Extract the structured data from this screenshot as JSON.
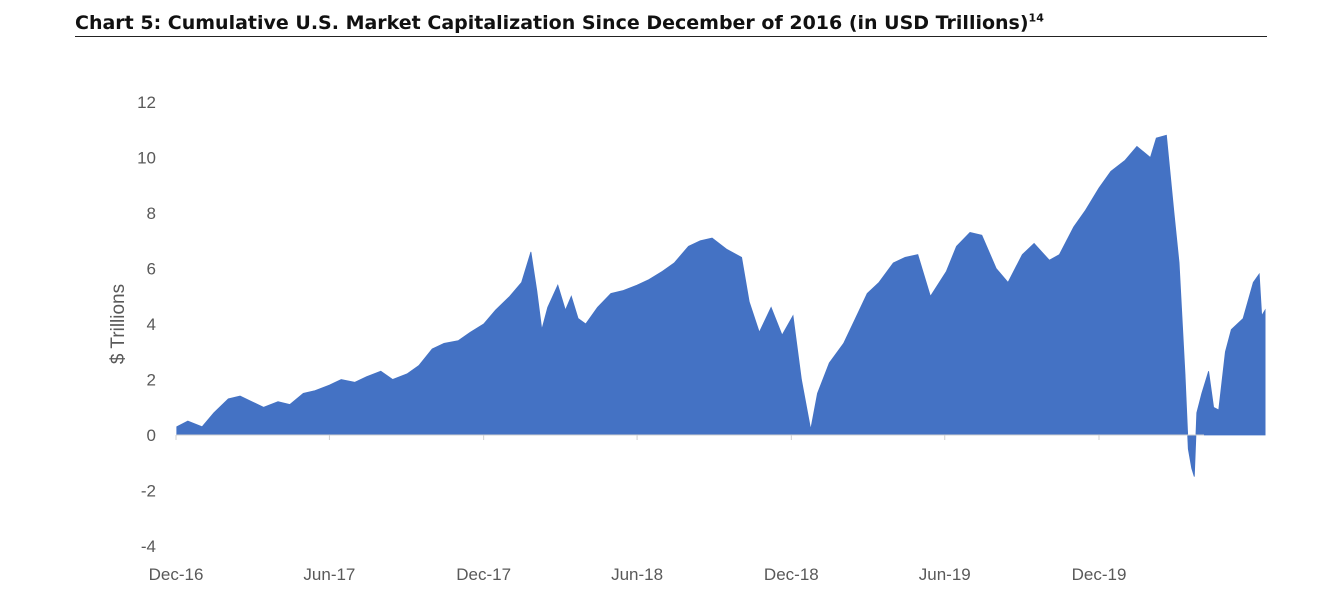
{
  "title": {
    "text": "Chart 5: Cumulative U.S. Market Capitalization Since December of 2016 (in USD Trillions)",
    "superscript": "14"
  },
  "chart_data": {
    "type": "area",
    "ylabel": "$ Trillions",
    "ylim": [
      -4,
      12
    ],
    "y_ticks": [
      "12",
      "10",
      "8",
      "6",
      "4",
      "2",
      "0",
      "-2",
      "-4"
    ],
    "x_ticks": [
      "Dec-16",
      "Jun-17",
      "Dec-17",
      "Jun-18",
      "Dec-18",
      "Jun-19",
      "Dec-19"
    ],
    "x_tick_dates": [
      "2016-12-01",
      "2017-06-01",
      "2017-12-01",
      "2018-06-01",
      "2018-12-01",
      "2019-06-01",
      "2019-12-01"
    ],
    "grid": false,
    "legend": "none",
    "color": "#4472C4",
    "x": [
      "2016-12-02",
      "2016-12-15",
      "2017-01-01",
      "2017-01-15",
      "2017-02-01",
      "2017-02-15",
      "2017-03-01",
      "2017-03-15",
      "2017-04-01",
      "2017-04-15",
      "2017-05-01",
      "2017-05-15",
      "2017-06-01",
      "2017-06-15",
      "2017-07-01",
      "2017-07-15",
      "2017-08-01",
      "2017-08-15",
      "2017-09-01",
      "2017-09-15",
      "2017-10-01",
      "2017-10-15",
      "2017-11-01",
      "2017-11-15",
      "2017-12-01",
      "2017-12-15",
      "2018-01-01",
      "2018-01-15",
      "2018-01-26",
      "2018-02-02",
      "2018-02-08",
      "2018-02-15",
      "2018-02-27",
      "2018-03-08",
      "2018-03-15",
      "2018-03-23",
      "2018-04-01",
      "2018-04-15",
      "2018-05-01",
      "2018-05-15",
      "2018-06-01",
      "2018-06-15",
      "2018-07-01",
      "2018-07-15",
      "2018-08-01",
      "2018-08-15",
      "2018-08-29",
      "2018-09-15",
      "2018-10-03",
      "2018-10-12",
      "2018-10-24",
      "2018-11-07",
      "2018-11-20",
      "2018-12-03",
      "2018-12-13",
      "2018-12-24",
      "2019-01-01",
      "2019-01-15",
      "2019-02-01",
      "2019-02-15",
      "2019-03-01",
      "2019-03-15",
      "2019-04-01",
      "2019-04-15",
      "2019-04-30",
      "2019-05-15",
      "2019-06-03",
      "2019-06-15",
      "2019-07-01",
      "2019-07-15",
      "2019-08-01",
      "2019-08-15",
      "2019-09-01",
      "2019-09-15",
      "2019-10-03",
      "2019-10-15",
      "2019-11-01",
      "2019-11-15",
      "2019-12-01",
      "2019-12-15",
      "2020-01-01",
      "2020-01-15",
      "2020-01-31",
      "2020-02-07",
      "2020-02-19",
      "2020-02-28",
      "2020-03-05",
      "2020-03-12",
      "2020-03-16",
      "2020-03-20",
      "2020-03-23",
      "2020-03-26",
      "2020-04-01",
      "2020-04-09",
      "2020-04-15",
      "2020-04-21",
      "2020-04-29",
      "2020-05-06",
      "2020-05-13",
      "2020-05-20",
      "2020-06-01",
      "2020-06-08",
      "2020-06-11",
      "2020-06-15"
    ],
    "values": [
      0.3,
      0.5,
      0.3,
      0.8,
      1.3,
      1.4,
      1.2,
      1.0,
      1.2,
      1.1,
      1.5,
      1.6,
      1.8,
      2.0,
      1.9,
      2.1,
      2.3,
      2.0,
      2.2,
      2.5,
      3.1,
      3.3,
      3.4,
      3.7,
      4.0,
      4.5,
      5.0,
      5.5,
      6.6,
      5.2,
      3.8,
      4.6,
      5.4,
      4.5,
      5.0,
      4.2,
      4.0,
      4.6,
      5.1,
      5.2,
      5.4,
      5.6,
      5.9,
      6.2,
      6.8,
      7.0,
      7.1,
      6.7,
      6.4,
      4.8,
      3.7,
      4.6,
      3.6,
      4.3,
      2.0,
      0.2,
      1.5,
      2.6,
      3.3,
      4.2,
      5.1,
      5.5,
      6.2,
      6.4,
      6.5,
      5.0,
      5.9,
      6.8,
      7.3,
      7.2,
      6.0,
      5.5,
      6.5,
      6.9,
      6.3,
      6.5,
      7.5,
      8.1,
      8.9,
      9.5,
      9.9,
      10.4,
      10.0,
      10.7,
      10.8,
      8.0,
      6.2,
      2.2,
      -0.5,
      -1.2,
      -1.5,
      0.8,
      1.5,
      2.3,
      1.0,
      0.9,
      3.0,
      3.8,
      4.0,
      4.2,
      5.5,
      5.8,
      4.3,
      4.5
    ]
  }
}
